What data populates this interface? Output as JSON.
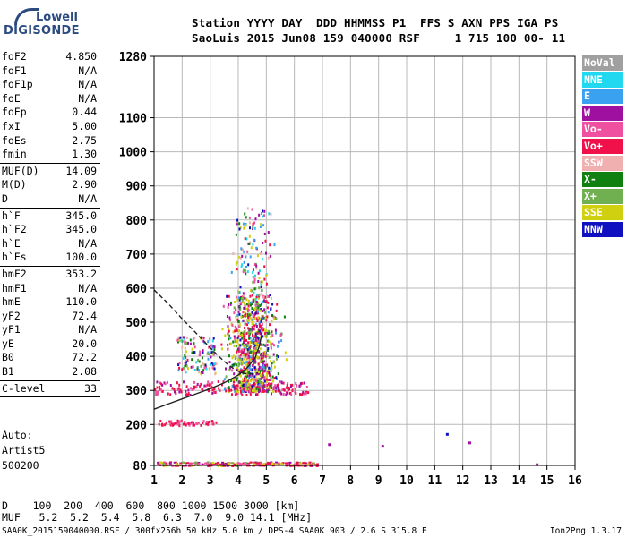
{
  "logo": {
    "line1": "Lowell",
    "line2": "DIGISONDE"
  },
  "header": {
    "line1": "Station YYYY DAY  DDD HHMMSS P1  FFS S AXN PPS IGA PS",
    "line2": "SaoLuis 2015 Jun08 159 040000 RSF     1 715 100 00- 11"
  },
  "params": [
    {
      "label": "foF2",
      "value": "4.850"
    },
    {
      "label": "foF1",
      "value": "N/A"
    },
    {
      "label": "foF1p",
      "value": "N/A"
    },
    {
      "label": "foE",
      "value": "N/A"
    },
    {
      "label": "foEp",
      "value": "0.44"
    },
    {
      "label": "fxI",
      "value": "5.00"
    },
    {
      "label": "foEs",
      "value": "2.75"
    },
    {
      "label": "fmin",
      "value": "1.30"
    },
    {
      "sep": true
    },
    {
      "label": "MUF(D)",
      "value": "14.09"
    },
    {
      "label": "M(D)",
      "value": "2.90"
    },
    {
      "label": "D",
      "value": "N/A"
    },
    {
      "sep": true
    },
    {
      "label": "h`F",
      "value": "345.0"
    },
    {
      "label": "h`F2",
      "value": "345.0"
    },
    {
      "label": "h`E",
      "value": "N/A"
    },
    {
      "label": "h`Es",
      "value": "100.0"
    },
    {
      "sep": true
    },
    {
      "label": "hmF2",
      "value": "353.2"
    },
    {
      "label": "hmF1",
      "value": "N/A"
    },
    {
      "label": "hmE",
      "value": "110.0"
    },
    {
      "label": "yF2",
      "value": "72.4"
    },
    {
      "label": "yF1",
      "value": "N/A"
    },
    {
      "label": "yE",
      "value": "20.0"
    },
    {
      "label": "B0",
      "value": "72.2"
    },
    {
      "label": "B1",
      "value": "2.08"
    },
    {
      "sep": true
    },
    {
      "label": "C-level",
      "value": "33"
    },
    {
      "sep": true
    }
  ],
  "auto": {
    "line1": "Auto:",
    "line2": "Artist5",
    "line3": "500200"
  },
  "legend": [
    {
      "label": "NoVal",
      "color": "#a0a0a0"
    },
    {
      "label": "NNE",
      "color": "#22d7f0"
    },
    {
      "label": "E",
      "color": "#3aa0f0"
    },
    {
      "label": "W",
      "color": "#a010a0"
    },
    {
      "label": "Vo-",
      "color": "#f050a0"
    },
    {
      "label": "Vo+",
      "color": "#f0104a"
    },
    {
      "label": "SSW",
      "color": "#f0b0b0"
    },
    {
      "label": "X-",
      "color": "#108010"
    },
    {
      "label": "X+",
      "color": "#70b050"
    },
    {
      "label": "SSE",
      "color": "#d0d010"
    },
    {
      "label": "NNW",
      "color": "#1010c0"
    }
  ],
  "footer": {
    "line1": "D    100  200  400  600  800 1000 1500 3000 [km]",
    "line2": "MUF   5.2  5.2  5.4  5.8  6.3  7.0  9.0 14.1 [MHz]",
    "line3_left": "SAA0K_2015159040000.RSF / 300fx256h 50 kHz 5.0 km / DPS-4 SAA0K 903 / 2.6 S 315.8 E",
    "line3_right": "Ion2Png 1.3.17"
  },
  "chart_data": {
    "type": "scatter",
    "xlim": [
      1,
      16
    ],
    "ylim": [
      80,
      1280
    ],
    "xticks": [
      1,
      2,
      3,
      4,
      5,
      6,
      7,
      8,
      9,
      10,
      11,
      12,
      13,
      14,
      15,
      16
    ],
    "yticks": [
      80,
      200,
      300,
      400,
      500,
      600,
      700,
      800,
      900,
      1000,
      1100,
      1280
    ],
    "grid": true,
    "echo_clusters": [
      {
        "name": "Es trace",
        "x": [
          1.1,
          6.8
        ],
        "y": [
          80,
          92
        ]
      },
      {
        "name": "F trace",
        "x": [
          1.0,
          6.5
        ],
        "y": [
          290,
          330
        ]
      },
      {
        "name": "spread F",
        "x": [
          3.0,
          5.8
        ],
        "y": [
          300,
          580
        ]
      },
      {
        "name": "spread F upper",
        "x": [
          3.7,
          5.3
        ],
        "y": [
          560,
          840
        ]
      },
      {
        "name": "low band",
        "x": [
          1.1,
          3.2
        ],
        "y": [
          200,
          215
        ]
      },
      {
        "name": "left cluster",
        "x": [
          1.8,
          3.2
        ],
        "y": [
          350,
          460
        ]
      }
    ],
    "curves": [
      {
        "name": "virtual height fit",
        "x": [
          1.0,
          1.5,
          2.0,
          2.5,
          3.0,
          3.5,
          4.0,
          4.3,
          4.6,
          4.75,
          4.85
        ],
        "y": [
          245,
          260,
          275,
          290,
          305,
          322,
          345,
          365,
          395,
          430,
          470
        ]
      },
      {
        "name": "real height profile",
        "x": [
          1.0,
          1.5,
          2.0,
          2.5,
          3.0,
          3.3,
          3.6,
          3.9,
          4.2,
          4.5,
          4.7
        ],
        "y": [
          595,
          555,
          510,
          468,
          425,
          400,
          378,
          360,
          350,
          348,
          352
        ],
        "dashed": true
      }
    ]
  }
}
